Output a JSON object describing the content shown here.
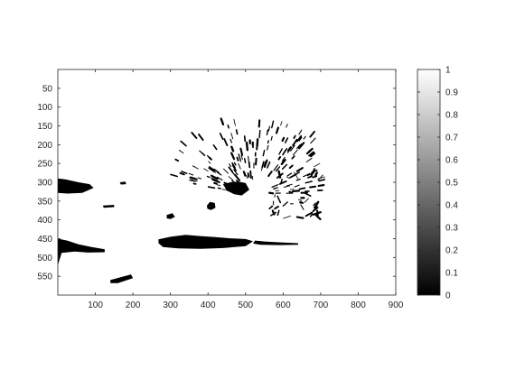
{
  "chart_data": {
    "type": "heatmap",
    "title": "",
    "xlabel": "",
    "ylabel": "",
    "image_content": "binarized hedgehog photograph",
    "colormap": "gray",
    "value_range": [
      0,
      1
    ],
    "xlim": [
      0,
      900
    ],
    "ylim": [
      600,
      0
    ],
    "y_direction": "reversed",
    "x_ticks": [
      100,
      200,
      300,
      400,
      500,
      600,
      700,
      800,
      900
    ],
    "x_tick_labels": [
      "100",
      "200",
      "300",
      "400",
      "500",
      "600",
      "700",
      "800",
      "900"
    ],
    "y_ticks": [
      50,
      100,
      150,
      200,
      250,
      300,
      350,
      400,
      450,
      500,
      550
    ],
    "y_tick_labels": [
      "50",
      "100",
      "150",
      "200",
      "250",
      "300",
      "350",
      "400",
      "450",
      "500",
      "550"
    ],
    "colorbar": {
      "ticks": [
        0,
        0.1,
        0.2,
        0.3,
        0.4,
        0.5,
        0.6,
        0.7,
        0.8,
        0.9,
        1
      ],
      "tick_labels": [
        "0",
        "0.1",
        "0.2",
        "0.3",
        "0.4",
        "0.5",
        "0.6",
        "0.7",
        "0.8",
        "0.9",
        "1"
      ],
      "color_low": "#000000",
      "color_high": "#ffffff"
    },
    "black_regions": [
      {
        "name": "left-dark-patch-upper",
        "points": [
          [
            0,
            290
          ],
          [
            20,
            292
          ],
          [
            55,
            300
          ],
          [
            85,
            305
          ],
          [
            95,
            315
          ],
          [
            65,
            328
          ],
          [
            25,
            330
          ],
          [
            0,
            328
          ]
        ]
      },
      {
        "name": "left-dark-patch-lower",
        "points": [
          [
            0,
            450
          ],
          [
            25,
            455
          ],
          [
            55,
            465
          ],
          [
            90,
            472
          ],
          [
            125,
            478
          ],
          [
            125,
            486
          ],
          [
            80,
            487
          ],
          [
            45,
            484
          ],
          [
            10,
            488
          ],
          [
            0,
            520
          ]
        ]
      },
      {
        "name": "middle-dark-streak",
        "points": [
          [
            120,
            362
          ],
          [
            150,
            360
          ],
          [
            150,
            366
          ],
          [
            122,
            368
          ]
        ]
      },
      {
        "name": "small-dark-spot",
        "points": [
          [
            165,
            300
          ],
          [
            180,
            298
          ],
          [
            182,
            305
          ],
          [
            168,
            306
          ]
        ]
      },
      {
        "name": "bottom-dark-patch",
        "points": [
          [
            140,
            560
          ],
          [
            195,
            545
          ],
          [
            200,
            555
          ],
          [
            160,
            568
          ],
          [
            140,
            568
          ]
        ]
      },
      {
        "name": "hedgehog-belly-shadow",
        "points": [
          [
            268,
            452
          ],
          [
            300,
            445
          ],
          [
            340,
            440
          ],
          [
            380,
            443
          ],
          [
            420,
            446
          ],
          [
            460,
            449
          ],
          [
            500,
            451
          ],
          [
            520,
            457
          ],
          [
            500,
            470
          ],
          [
            440,
            475
          ],
          [
            380,
            477
          ],
          [
            320,
            476
          ],
          [
            280,
            472
          ],
          [
            268,
            462
          ]
        ]
      },
      {
        "name": "hedgehog-lower-body",
        "points": [
          [
            320,
            462
          ],
          [
            360,
            458
          ],
          [
            400,
            458
          ],
          [
            440,
            458
          ],
          [
            460,
            464
          ],
          [
            440,
            468
          ],
          [
            400,
            470
          ],
          [
            360,
            470
          ],
          [
            330,
            468
          ]
        ]
      },
      {
        "name": "hedgehog-eye",
        "points": [
          [
            397,
            362
          ],
          [
            405,
            352
          ],
          [
            418,
            355
          ],
          [
            420,
            368
          ],
          [
            408,
            374
          ],
          [
            398,
            370
          ]
        ]
      },
      {
        "name": "hedgehog-snout-dark",
        "points": [
          [
            290,
            387
          ],
          [
            305,
            382
          ],
          [
            312,
            392
          ],
          [
            300,
            398
          ],
          [
            290,
            396
          ]
        ]
      },
      {
        "name": "right-ground-shadow",
        "points": [
          [
            525,
            455
          ],
          [
            555,
            458
          ],
          [
            600,
            460
          ],
          [
            640,
            462
          ],
          [
            640,
            466
          ],
          [
            590,
            467
          ],
          [
            540,
            466
          ],
          [
            520,
            463
          ]
        ]
      },
      {
        "name": "hedgehog-spine-core",
        "points": [
          [
            440,
            305
          ],
          [
            460,
            300
          ],
          [
            480,
            298
          ],
          [
            500,
            302
          ],
          [
            510,
            320
          ],
          [
            490,
            335
          ],
          [
            470,
            332
          ],
          [
            450,
            322
          ]
        ]
      }
    ],
    "spine_region": {
      "x_min": 300,
      "x_max": 700,
      "y_min": 140,
      "y_max": 400,
      "count": 230,
      "seed": 7
    }
  }
}
